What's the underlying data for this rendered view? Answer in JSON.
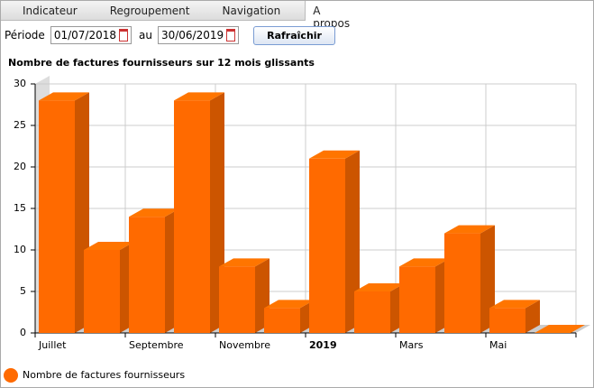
{
  "menu": {
    "items": [
      "Indicateur",
      "Regroupement",
      "Navigation",
      "A propos"
    ]
  },
  "form": {
    "label": "Période",
    "start": "01/07/2018",
    "separator": "au",
    "end": "30/06/2019",
    "button": "Rafraîchir"
  },
  "chart_data": {
    "type": "bar3d",
    "title": "Nombre de factures fournisseurs sur 12 mois glissants",
    "categories": [
      "Juillet",
      null,
      "Septembre",
      null,
      "Novembre",
      null,
      "2019",
      null,
      "Mars",
      null,
      "Mai",
      null
    ],
    "series": [
      {
        "name": "Nombre de factures fournisseurs",
        "color": "#ff6a00",
        "values": [
          28,
          10,
          14,
          28,
          8,
          3,
          21,
          5,
          8,
          12,
          3,
          0
        ]
      }
    ],
    "ylim": [
      0,
      30
    ],
    "yticks": [
      0,
      5,
      10,
      15,
      20,
      25,
      30
    ],
    "grid": true,
    "legend": "bottom-left"
  }
}
